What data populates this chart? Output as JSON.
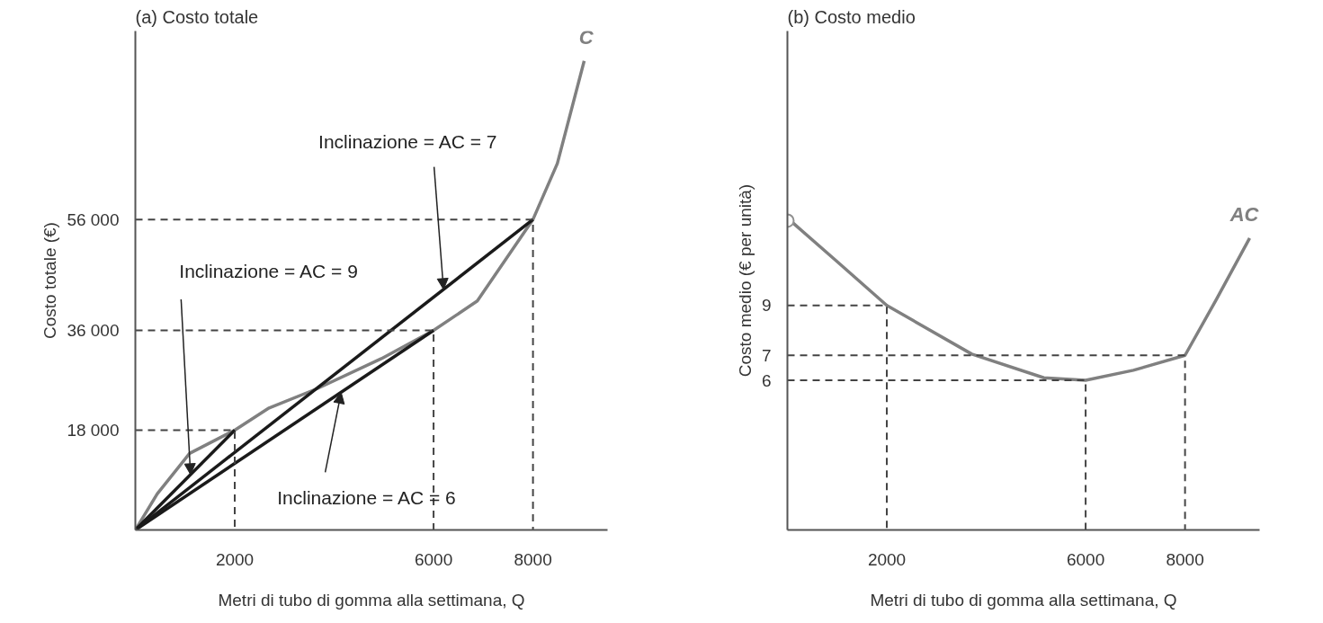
{
  "chart_data": [
    {
      "type": "line",
      "title": "(a) Costo totale",
      "xlabel": "Metri di tubo di gomma alla settimana, Q",
      "ylabel": "Costo totale (€)",
      "xlim": [
        0,
        9500
      ],
      "ylim": [
        0,
        90000
      ],
      "xticks": [
        2000,
        6000,
        8000
      ],
      "yticks": [
        {
          "value": 18000,
          "label": "18 000"
        },
        {
          "value": 36000,
          "label": "36 000"
        },
        {
          "value": 56000,
          "label": "56 000"
        }
      ],
      "grid": false,
      "series": [
        {
          "name": "C",
          "color": "#808080",
          "x": [
            0,
            440,
            1090,
            2000,
            2690,
            3660,
            4950,
            6000,
            6880,
            8000,
            8490,
            9030
          ],
          "values": [
            0,
            6500,
            13800,
            18000,
            22000,
            25500,
            30900,
            36000,
            41300,
            56000,
            66100,
            84600
          ]
        },
        {
          "color": "#1a1a1a",
          "x": [
            0,
            2000
          ],
          "values": [
            0,
            18000
          ]
        },
        {
          "color": "#1a1a1a",
          "x": [
            0,
            6000
          ],
          "values": [
            0,
            36000
          ]
        },
        {
          "color": "#1a1a1a",
          "x": [
            0,
            8000
          ],
          "values": [
            0,
            56000
          ]
        },
        {
          "color": "#444444",
          "line_style": "dashed",
          "x": [
            0,
            2000,
            2000
          ],
          "values": [
            18000,
            18000,
            0
          ]
        },
        {
          "color": "#444444",
          "line_style": "dashed",
          "x": [
            0,
            6000,
            6000
          ],
          "values": [
            36000,
            36000,
            0
          ]
        },
        {
          "color": "#444444",
          "line_style": "dashed",
          "x": [
            0,
            8000,
            8000
          ],
          "values": [
            56000,
            56000,
            0
          ]
        }
      ],
      "annotations": [
        {
          "text": "Inclinazione = AC = 7",
          "x": 6200,
          "y": 43400
        },
        {
          "text": "Inclinazione = AC = 9",
          "x": 1110,
          "y": 10000
        },
        {
          "text": "Inclinazione = AC = 6",
          "x": 4140,
          "y": 24800
        }
      ]
    },
    {
      "type": "line",
      "title": "(b) Costo medio",
      "xlabel": "Metri di tubo di gomma alla settimana, Q",
      "ylabel": "Costo medio (€ per unità)",
      "xlim": [
        0,
        9500
      ],
      "ylim": [
        0,
        20
      ],
      "xticks": [
        2000,
        6000,
        8000
      ],
      "yticks": [
        6,
        7,
        9
      ],
      "grid": false,
      "series": [
        {
          "name": "AC",
          "color": "#808080",
          "x": [
            115,
            975,
            2000,
            3710,
            5160,
            6000,
            6960,
            8000,
            8620,
            9300
          ],
          "values": [
            12.3,
            10.8,
            9,
            7.05,
            6.1,
            6,
            6.4,
            7,
            9.2,
            11.7
          ]
        },
        {
          "type": "scatter",
          "marker": "circle",
          "color": "#909090",
          "x": [
            0
          ],
          "values": [
            12.4
          ]
        },
        {
          "color": "#444444",
          "line_style": "dashed",
          "x": [
            0,
            2000,
            2000
          ],
          "values": [
            9,
            9,
            0
          ]
        },
        {
          "color": "#444444",
          "line_style": "dashed",
          "x": [
            0,
            8000,
            8000
          ],
          "values": [
            7,
            7,
            0
          ]
        },
        {
          "color": "#444444",
          "line_style": "dashed",
          "x": [
            0,
            6000,
            6000
          ],
          "values": [
            6,
            6,
            0
          ]
        }
      ]
    }
  ]
}
